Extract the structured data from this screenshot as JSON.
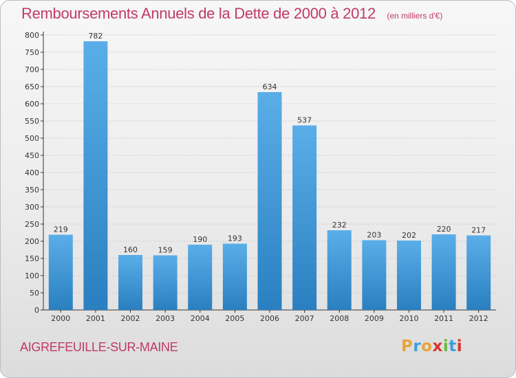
{
  "header": {
    "title": "Remboursements Annuels de la Dette de 2000 à 2012",
    "unit": "(en milliers d'€)"
  },
  "footer": {
    "commune": "AIGREFEUILLE-SUR-MAINE",
    "logo_text": "Proxiti"
  },
  "colors": {
    "title": "#c0396a",
    "bar_top": "#5aaee8",
    "bar_bottom": "#2a7fc0",
    "axis": "#333333",
    "grid": "#cccccc",
    "logo_letters": [
      "#e8a33a",
      "#3aa0d8",
      "#e8a33a",
      "#d8342e",
      "#6ab83a",
      "#3aa0d8",
      "#d8342e"
    ]
  },
  "chart_data": {
    "type": "bar",
    "title": "Remboursements Annuels de la Dette de 2000 à 2012",
    "categories": [
      "2000",
      "2001",
      "2002",
      "2003",
      "2004",
      "2005",
      "2006",
      "2007",
      "2008",
      "2009",
      "2010",
      "2011",
      "2012"
    ],
    "values": [
      219,
      782,
      160,
      159,
      190,
      193,
      634,
      537,
      232,
      203,
      202,
      220,
      217
    ],
    "ylim": [
      0,
      800
    ],
    "yticks": [
      0,
      50,
      100,
      150,
      200,
      250,
      300,
      350,
      400,
      450,
      500,
      550,
      600,
      650,
      700,
      750,
      800
    ],
    "grid": true,
    "xlabel": "",
    "ylabel": ""
  }
}
